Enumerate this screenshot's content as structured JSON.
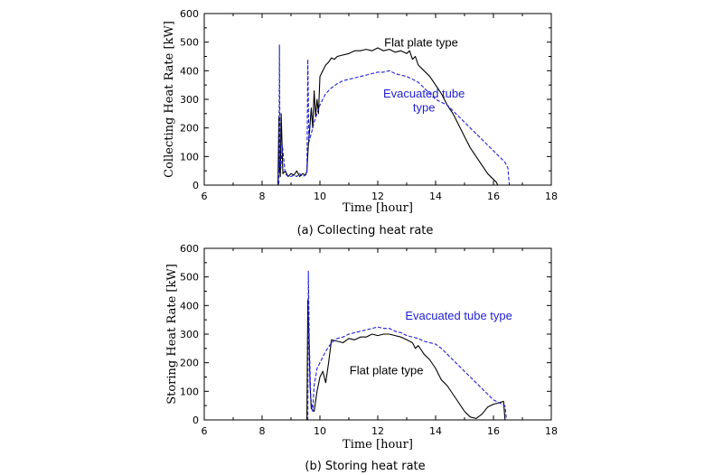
{
  "colors": {
    "flat": "#000000",
    "evac": "#1f1fd6",
    "frame": "#000000"
  },
  "chart_data": [
    {
      "type": "line",
      "title": "(a) Collecting heat rate",
      "xlabel": "Time [hour]",
      "ylabel": "Collecting Heat Rate [kW]",
      "xlim": [
        6,
        18
      ],
      "ylim": [
        0,
        600
      ],
      "xticks": [
        "6",
        "8",
        "10",
        "12",
        "14",
        "16",
        "18"
      ],
      "yticks": [
        "0",
        "100",
        "200",
        "300",
        "400",
        "500",
        "600"
      ],
      "annotations": [
        {
          "series": "flat",
          "text": "Flat plate type",
          "x": 13.5,
          "y": 485
        },
        {
          "series": "evac",
          "text": "Evacuated tube",
          "x": 13.6,
          "y": 307
        },
        {
          "series": "evac",
          "text": "type",
          "x": 13.6,
          "y": 258
        }
      ],
      "series": [
        {
          "key": "flat",
          "name": "Flat plate type",
          "x": [
            6,
            8.55,
            8.58,
            8.6,
            8.63,
            8.66,
            8.72,
            8.8,
            8.9,
            9.0,
            9.1,
            9.2,
            9.3,
            9.4,
            9.5,
            9.55,
            9.6,
            9.65,
            9.7,
            9.75,
            9.8,
            9.85,
            9.9,
            9.95,
            10.0,
            10.1,
            10.2,
            10.3,
            10.4,
            10.5,
            10.6,
            10.8,
            11.0,
            11.2,
            11.4,
            11.6,
            11.8,
            12.0,
            12.2,
            12.4,
            12.6,
            12.8,
            13.0,
            13.1,
            13.2,
            13.3,
            13.4,
            13.6,
            13.8,
            14.0,
            14.2,
            14.4,
            14.6,
            14.8,
            15.0,
            15.2,
            15.4,
            15.6,
            15.8,
            16.0,
            16.1,
            16.15,
            18
          ],
          "y": [
            0,
            0,
            240,
            60,
            30,
            250,
            40,
            50,
            30,
            40,
            35,
            50,
            30,
            40,
            35,
            50,
            140,
            200,
            270,
            200,
            330,
            240,
            300,
            250,
            380,
            400,
            420,
            430,
            445,
            440,
            450,
            455,
            460,
            470,
            470,
            475,
            470,
            480,
            470,
            475,
            465,
            470,
            460,
            470,
            440,
            450,
            420,
            400,
            380,
            350,
            320,
            280,
            250,
            210,
            170,
            130,
            100,
            70,
            40,
            20,
            10,
            0,
            0
          ]
        },
        {
          "key": "evac",
          "name": "Evacuated tube type",
          "x": [
            6,
            8.58,
            8.6,
            8.62,
            8.65,
            8.7,
            8.8,
            8.9,
            9.0,
            9.1,
            9.2,
            9.3,
            9.4,
            9.5,
            9.55,
            9.58,
            9.62,
            9.7,
            9.8,
            9.9,
            10.0,
            10.2,
            10.4,
            10.6,
            10.8,
            11.0,
            11.2,
            11.4,
            11.6,
            11.8,
            12.0,
            12.2,
            12.4,
            12.6,
            12.8,
            13.0,
            13.2,
            13.4,
            13.6,
            13.8,
            14.0,
            14.2,
            14.4,
            14.6,
            14.8,
            15.0,
            15.2,
            15.4,
            15.6,
            15.8,
            16.0,
            16.2,
            16.4,
            16.5,
            16.55,
            18
          ],
          "y": [
            0,
            0,
            490,
            100,
            60,
            140,
            40,
            30,
            30,
            35,
            30,
            40,
            30,
            35,
            40,
            440,
            150,
            180,
            220,
            250,
            280,
            320,
            340,
            355,
            365,
            370,
            375,
            380,
            385,
            390,
            395,
            395,
            400,
            390,
            385,
            380,
            370,
            360,
            340,
            320,
            300,
            290,
            280,
            260,
            240,
            220,
            200,
            180,
            160,
            140,
            120,
            100,
            80,
            60,
            0,
            0
          ]
        }
      ]
    },
    {
      "type": "line",
      "title": "(b) Storing heat rate",
      "xlabel": "Time [hour]",
      "ylabel": "Storing Heat Rate [kW]",
      "xlim": [
        6,
        18
      ],
      "ylim": [
        0,
        600
      ],
      "xticks": [
        "6",
        "8",
        "10",
        "12",
        "14",
        "16",
        "18"
      ],
      "yticks": [
        "0",
        "100",
        "200",
        "300",
        "400",
        "500",
        "600"
      ],
      "annotations": [
        {
          "series": "evac",
          "text": "Evacuated tube type",
          "x": 14.8,
          "y": 350
        },
        {
          "series": "flat",
          "text": "Flat plate type",
          "x": 12.3,
          "y": 160
        }
      ],
      "series": [
        {
          "key": "flat",
          "name": "Flat plate type",
          "x": [
            6,
            9.55,
            9.58,
            9.62,
            9.66,
            9.7,
            9.8,
            9.9,
            10.0,
            10.1,
            10.2,
            10.3,
            10.4,
            10.6,
            10.8,
            11.0,
            11.2,
            11.4,
            11.6,
            11.8,
            12.0,
            12.2,
            12.4,
            12.6,
            12.8,
            13.0,
            13.2,
            13.3,
            13.4,
            13.6,
            13.8,
            14.0,
            14.2,
            14.4,
            14.6,
            14.8,
            15.0,
            15.2,
            15.4,
            15.6,
            15.8,
            16.0,
            16.2,
            16.35,
            16.4,
            18
          ],
          "y": [
            0,
            0,
            420,
            300,
            120,
            40,
            30,
            100,
            150,
            170,
            130,
            200,
            280,
            275,
            270,
            285,
            280,
            290,
            290,
            300,
            295,
            300,
            300,
            295,
            290,
            280,
            270,
            250,
            260,
            230,
            210,
            180,
            140,
            120,
            90,
            60,
            30,
            10,
            5,
            20,
            45,
            55,
            60,
            65,
            0,
            0
          ]
        },
        {
          "key": "evac",
          "name": "Evacuated tube type",
          "x": [
            6,
            9.58,
            9.6,
            9.63,
            9.68,
            9.75,
            9.8,
            9.9,
            10.0,
            10.2,
            10.4,
            10.6,
            10.8,
            11.0,
            11.2,
            11.4,
            11.6,
            11.8,
            12.0,
            12.2,
            12.4,
            12.6,
            12.8,
            13.0,
            13.2,
            13.4,
            13.6,
            13.8,
            14.0,
            14.2,
            14.4,
            14.6,
            14.8,
            15.0,
            15.2,
            15.4,
            15.6,
            15.8,
            16.0,
            16.2,
            16.4,
            16.45,
            18
          ],
          "y": [
            0,
            0,
            520,
            280,
            80,
            30,
            120,
            180,
            200,
            240,
            270,
            285,
            290,
            300,
            305,
            310,
            315,
            320,
            325,
            320,
            320,
            310,
            305,
            295,
            290,
            285,
            275,
            270,
            265,
            250,
            230,
            210,
            190,
            170,
            150,
            130,
            110,
            90,
            70,
            60,
            50,
            0,
            0
          ]
        }
      ]
    }
  ]
}
